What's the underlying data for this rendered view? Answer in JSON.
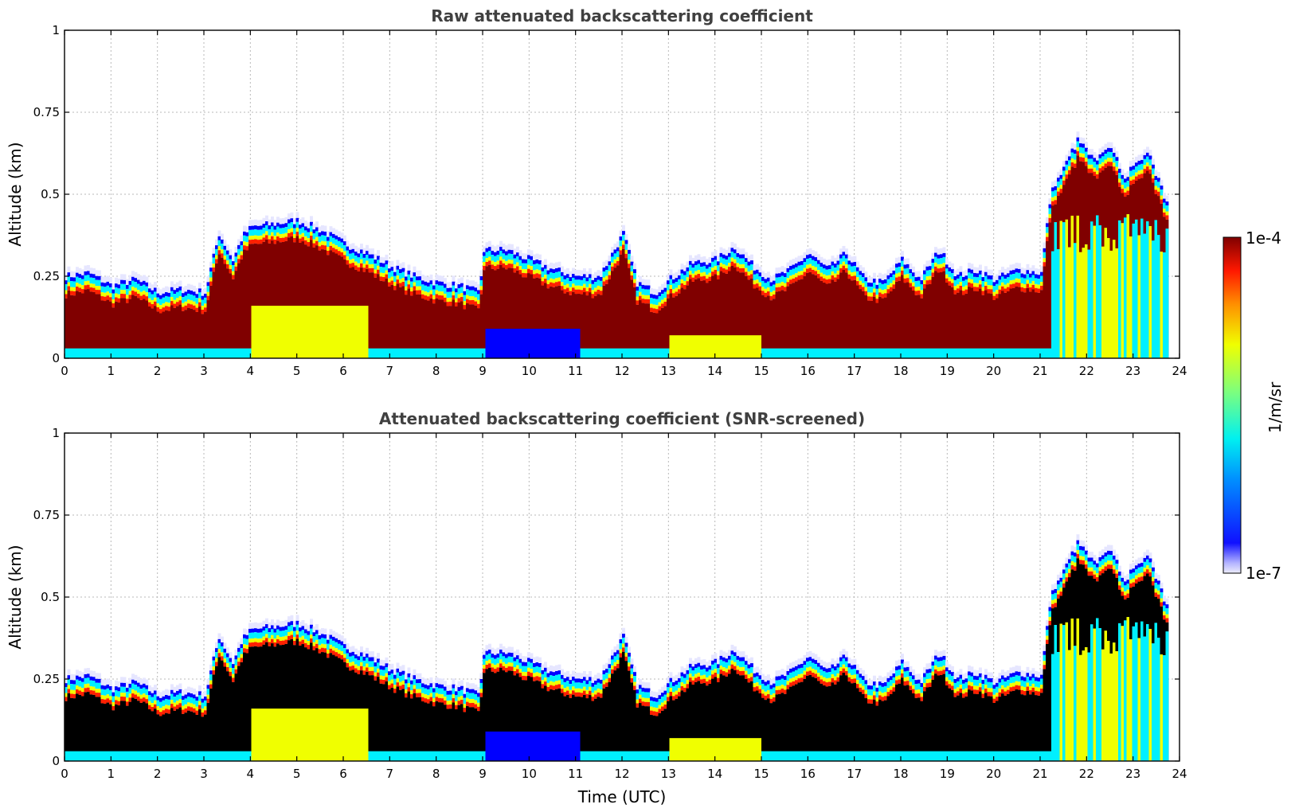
{
  "chart_data": [
    {
      "type": "heatmap",
      "title": "Raw attenuated backscattering coefficient",
      "xlabel": "",
      "ylabel": "Altitude (km)",
      "xlim": [
        0,
        24
      ],
      "ylim": [
        0,
        1
      ],
      "xticks": [
        "0",
        "1",
        "2",
        "3",
        "4",
        "5",
        "6",
        "7",
        "8",
        "9",
        "10",
        "11",
        "12",
        "13",
        "14",
        "15",
        "16",
        "17",
        "18",
        "19",
        "20",
        "21",
        "22",
        "23",
        "24"
      ],
      "yticks": [
        "0",
        "0.25",
        "0.5",
        "0.75",
        "1"
      ],
      "grid": true,
      "screened": false,
      "layer_top_km": [
        [
          0,
          0.25
        ],
        [
          0.5,
          0.26
        ],
        [
          1,
          0.22
        ],
        [
          1.5,
          0.24
        ],
        [
          2,
          0.2
        ],
        [
          2.5,
          0.21
        ],
        [
          3,
          0.2
        ],
        [
          3.3,
          0.38
        ],
        [
          3.6,
          0.3
        ],
        [
          3.8,
          0.37
        ],
        [
          4,
          0.4
        ],
        [
          4.5,
          0.41
        ],
        [
          5,
          0.42
        ],
        [
          5.5,
          0.39
        ],
        [
          6,
          0.35
        ],
        [
          6.5,
          0.32
        ],
        [
          7,
          0.28
        ],
        [
          7.5,
          0.25
        ],
        [
          8,
          0.23
        ],
        [
          8.5,
          0.22
        ],
        [
          8.9,
          0.2
        ],
        [
          9,
          0.33
        ],
        [
          9.5,
          0.33
        ],
        [
          10,
          0.3
        ],
        [
          10.5,
          0.27
        ],
        [
          11,
          0.25
        ],
        [
          11.5,
          0.25
        ],
        [
          12,
          0.38
        ],
        [
          12.3,
          0.23
        ],
        [
          12.7,
          0.2
        ],
        [
          13,
          0.24
        ],
        [
          13.5,
          0.29
        ],
        [
          14,
          0.3
        ],
        [
          14.4,
          0.34
        ],
        [
          14.8,
          0.28
        ],
        [
          15.2,
          0.24
        ],
        [
          15.6,
          0.27
        ],
        [
          16,
          0.32
        ],
        [
          16.4,
          0.27
        ],
        [
          16.8,
          0.32
        ],
        [
          17.2,
          0.24
        ],
        [
          17.6,
          0.23
        ],
        [
          18,
          0.3
        ],
        [
          18.4,
          0.24
        ],
        [
          18.8,
          0.33
        ],
        [
          19.2,
          0.25
        ],
        [
          19.6,
          0.27
        ],
        [
          20,
          0.24
        ],
        [
          20.5,
          0.27
        ],
        [
          21,
          0.26
        ],
        [
          21.2,
          0.5
        ],
        [
          21.5,
          0.58
        ],
        [
          21.8,
          0.67
        ],
        [
          22.2,
          0.6
        ],
        [
          22.5,
          0.65
        ],
        [
          22.8,
          0.55
        ],
        [
          23,
          0.6
        ],
        [
          23.3,
          0.62
        ],
        [
          23.5,
          0.55
        ],
        [
          23.7,
          0.47
        ]
      ]
    },
    {
      "type": "heatmap",
      "title": "Attenuated backscattering coefficient (SNR-screened)",
      "xlabel": "Time (UTC)",
      "ylabel": "Altitude (km)",
      "xlim": [
        0,
        24
      ],
      "ylim": [
        0,
        1
      ],
      "xticks": [
        "0",
        "1",
        "2",
        "3",
        "4",
        "5",
        "6",
        "7",
        "8",
        "9",
        "10",
        "11",
        "12",
        "13",
        "14",
        "15",
        "16",
        "17",
        "18",
        "19",
        "20",
        "21",
        "22",
        "23",
        "24"
      ],
      "yticks": [
        "0",
        "0.25",
        "0.5",
        "0.75",
        "1"
      ],
      "grid": true,
      "screened": true,
      "saturated_color": "#000000"
    }
  ],
  "colorbar": {
    "label": "1/m/sr",
    "max_label": "1e-4",
    "min_label": "1e-7",
    "scale": "log",
    "colormap": "jet",
    "range": [
      1e-07,
      0.0001
    ]
  },
  "colors": {
    "dark_red": "#800000",
    "red": "#ff2000",
    "yellow": "#f0ff00",
    "cyan": "#00f0ff",
    "blue": "#0000ff",
    "pale": "#e6e6ff"
  }
}
